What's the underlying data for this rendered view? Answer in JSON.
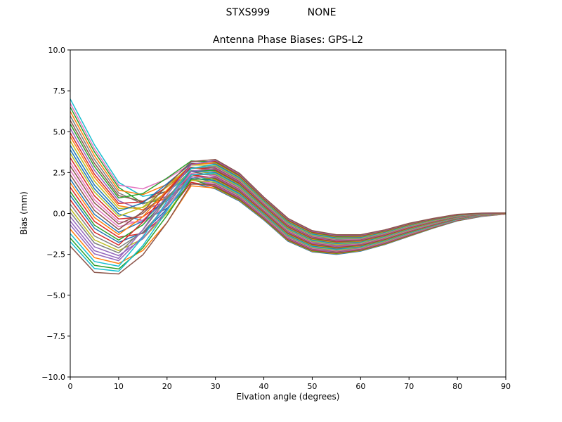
{
  "chart_data": {
    "type": "line",
    "suptitle": "STXS999            NONE",
    "title": "Antenna Phase Biases: GPS-L2",
    "xlabel": "Elvation angle (degrees)",
    "ylabel": "Bias (mm)",
    "xlim": [
      0,
      90
    ],
    "ylim": [
      -10,
      10
    ],
    "grid": false,
    "legend": "none",
    "x_ticks": [
      0,
      10,
      20,
      30,
      40,
      50,
      60,
      70,
      80,
      90
    ],
    "x_tick_labels": [
      "0",
      "10",
      "20",
      "30",
      "40",
      "50",
      "60",
      "70",
      "80",
      "90"
    ],
    "y_ticks": [
      10,
      7.5,
      5,
      2.5,
      0,
      -2.5,
      -5,
      -7.5,
      -10
    ],
    "y_tick_labels": [
      "10.0",
      "7.5",
      "5.0",
      "2.5",
      "0.0",
      "−2.5",
      "−5.0",
      "−7.5",
      "−10.0"
    ],
    "x": [
      0,
      5,
      10,
      15,
      20,
      25,
      30,
      35,
      40,
      45,
      50,
      55,
      60,
      65,
      70,
      75,
      80,
      85,
      90
    ],
    "bundle": {
      "description": "Dense bundle of per-satellite phase-bias curves. series_i(x) = base(x) + mix(offsets_low[i], offsets_high[i], clamp((x-10)/20,0,1)) * halfspan(x)",
      "base": [
        2.5,
        0.3,
        -0.9,
        -0.4,
        0.9,
        2.5,
        2.4,
        1.6,
        0.3,
        -1.0,
        -1.7,
        -1.9,
        -1.8,
        -1.45,
        -1.0,
        -0.6,
        -0.25,
        -0.08,
        0.0
      ],
      "halfspan": [
        4.5,
        3.9,
        2.8,
        2.3,
        1.7,
        0.9,
        0.9,
        0.85,
        0.7,
        0.7,
        0.65,
        0.6,
        0.5,
        0.45,
        0.4,
        0.3,
        0.2,
        0.1,
        0.03
      ],
      "offsets_low": [
        0.31,
        -0.77,
        0.89,
        -0.2,
        0.6,
        -1.0,
        0.14,
        0.77,
        -0.49,
        1.0,
        -0.31,
        0.49,
        -0.89,
        0.2,
        -0.6,
        0.71,
        0.03,
        -0.43,
        0.43,
        -0.94,
        -0.09,
        0.83,
        -0.26,
        0.54,
        -0.71,
        0.09,
        0.94,
        -0.54,
        0.26,
        -0.83,
        0.37,
        -0.14,
        0.66,
        -0.37,
        -0.66,
        -0.03
      ],
      "offsets_high": [
        -1.0,
        -0.94,
        -0.89,
        -0.83,
        -0.77,
        -0.71,
        -0.66,
        -0.6,
        -0.54,
        -0.49,
        -0.43,
        -0.37,
        -0.31,
        -0.26,
        -0.2,
        -0.14,
        -0.09,
        -0.03,
        0.03,
        0.09,
        0.14,
        0.2,
        0.26,
        0.31,
        0.37,
        0.43,
        0.49,
        0.54,
        0.6,
        0.66,
        0.71,
        0.77,
        0.83,
        0.89,
        0.94,
        1.0
      ]
    },
    "envelope": {
      "top": [
        7.0,
        4.2,
        1.9,
        1.9,
        2.6,
        3.4,
        3.3,
        2.45,
        1.0,
        -0.3,
        -1.05,
        -1.3,
        -1.3,
        -1.0,
        -0.6,
        -0.3,
        -0.05,
        0.02,
        0.03
      ],
      "bottom": [
        -2.0,
        -3.6,
        -3.7,
        -2.7,
        -0.8,
        1.6,
        1.5,
        0.75,
        -0.4,
        -1.7,
        -2.35,
        -2.5,
        -2.3,
        -1.9,
        -1.4,
        -0.9,
        -0.45,
        -0.18,
        -0.03
      ]
    },
    "palette": [
      "#1f77b4",
      "#ff7f0e",
      "#2ca02c",
      "#d62728",
      "#9467bd",
      "#8c564b",
      "#e377c2",
      "#7f7f7f",
      "#bcbd22",
      "#17becf"
    ],
    "n_series": 36,
    "axes_color": "#000000",
    "background_color": "#ffffff",
    "line_width": 1.5
  }
}
